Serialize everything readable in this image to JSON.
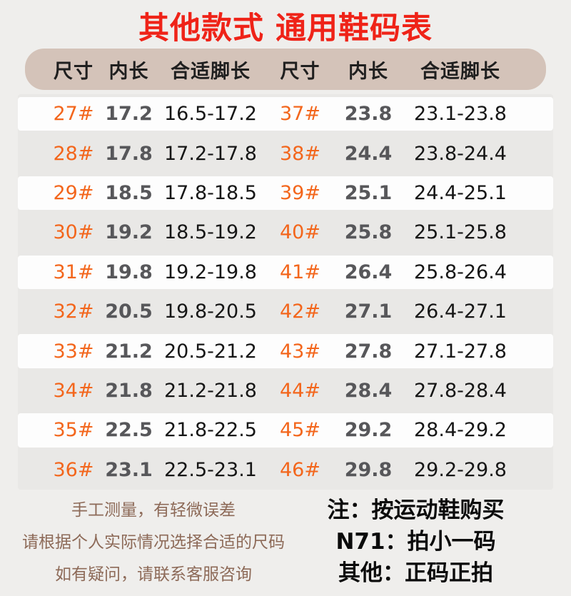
{
  "title": "其他款式 通用鞋码表",
  "colors": {
    "title_red": "#ef2318",
    "header_band": "#d4c3b9",
    "row_gray": "#e9e8e6",
    "size_orange": "#f3661c",
    "note_brown": "#8d6a58",
    "page_bg": "#efeeec",
    "row_white": "#fdfdfd"
  },
  "chart_data": {
    "type": "table",
    "title": "其他款式 通用鞋码表",
    "columns": [
      "尺寸",
      "内长",
      "合适脚长",
      "尺寸",
      "内长",
      "合适脚长"
    ],
    "rows": [
      [
        "27#",
        "17.2",
        "16.5-17.2",
        "37#",
        "23.8",
        "23.1-23.8"
      ],
      [
        "28#",
        "17.8",
        "17.2-17.8",
        "38#",
        "24.4",
        "23.8-24.4"
      ],
      [
        "29#",
        "18.5",
        "17.8-18.5",
        "39#",
        "25.1",
        "24.4-25.1"
      ],
      [
        "30#",
        "19.2",
        "18.5-19.2",
        "40#",
        "25.8",
        "25.1-25.8"
      ],
      [
        "31#",
        "19.8",
        "19.2-19.8",
        "41#",
        "26.4",
        "25.8-26.4"
      ],
      [
        "32#",
        "20.5",
        "19.8-20.5",
        "42#",
        "27.1",
        "26.4-27.1"
      ],
      [
        "33#",
        "21.2",
        "20.5-21.2",
        "43#",
        "27.8",
        "27.1-27.8"
      ],
      [
        "34#",
        "21.8",
        "21.2-21.8",
        "44#",
        "28.4",
        "27.8-28.4"
      ],
      [
        "35#",
        "22.5",
        "21.8-22.5",
        "45#",
        "29.2",
        "28.4-29.2"
      ],
      [
        "36#",
        "23.1",
        "22.5-23.1",
        "46#",
        "29.8",
        "29.2-29.8"
      ]
    ]
  },
  "notes_left": [
    "手工测量，有轻微误差",
    "请根据个人实际情况选择合适的尺码",
    "如有疑问，请联系客服咨询"
  ],
  "notes_right": [
    "注：按运动鞋购买",
    "N71：拍小一码",
    "其他：正码正拍"
  ]
}
